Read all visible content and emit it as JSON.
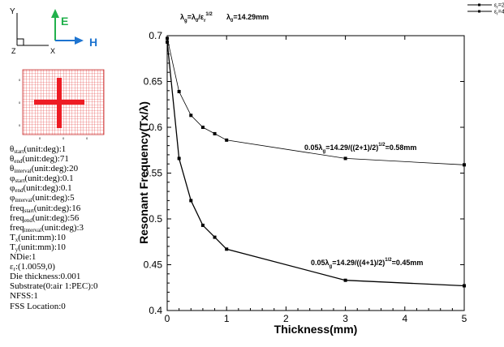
{
  "icon": {
    "y_label": "Y",
    "z_label": "Z",
    "x_label": "X",
    "e_label": "E",
    "h_label": "H",
    "e_color": "#22b14c",
    "h_color": "#1e74d0"
  },
  "thumbnail": {
    "grid_color": "#e53a3a",
    "cross_color": "#ee1c24",
    "y_ticks": [
      "0",
      "0",
      "0"
    ],
    "x_ticks": [
      "0",
      "0",
      "0"
    ]
  },
  "params": [
    {
      "pre": "θ",
      "sub": "start",
      "post": "(unit:deg):1"
    },
    {
      "pre": "θ",
      "sub": "end",
      "post": "(unit:deg):71"
    },
    {
      "pre": "θ",
      "sub": "interval",
      "post": "(unit:deg):20"
    },
    {
      "pre": "φ",
      "sub": "start",
      "post": "(unit:deg):0.1"
    },
    {
      "pre": "φ",
      "sub": "end",
      "post": "(unit:deg):0.1"
    },
    {
      "pre": "φ",
      "sub": "interval",
      "post": "(unit:deg):5"
    },
    {
      "pre": "freq",
      "sub": "start",
      "post": "(unit:deg):16"
    },
    {
      "pre": "freq",
      "sub": "end",
      "post": "(unit:deg):56"
    },
    {
      "pre": "freq",
      "sub": "interval",
      "post": "(unit:deg):3"
    },
    {
      "pre": "T",
      "sub": "x",
      "post": "(unit:mm):10"
    },
    {
      "pre": "T",
      "sub": "y",
      "post": "(unit:mm):10"
    },
    {
      "pre": "NDie:1",
      "sub": "",
      "post": ""
    },
    {
      "pre": "ε",
      "sub": "r",
      "post": ":(1.0059,0)"
    },
    {
      "pre": "Die thickness:0.001",
      "sub": "",
      "post": ""
    },
    {
      "pre": "Substrate(0:air 1:PEC):0",
      "sub": "",
      "post": ""
    },
    {
      "pre": "NFSS:1",
      "sub": "",
      "post": ""
    },
    {
      "pre": "FSS Location:0",
      "sub": "",
      "post": ""
    }
  ],
  "chart_data": {
    "type": "line",
    "title_parts": {
      "lambda_g": "λg=λ0/εr1/2",
      "lambda_0": "λ0=14.29mm"
    },
    "xlabel": "Thickness(mm)",
    "ylabel": "Resonant Frequency(Tx/λ)",
    "xlim": [
      0,
      5
    ],
    "ylim": [
      0.4,
      0.7
    ],
    "x_ticks": [
      "0",
      "1",
      "2",
      "3",
      "4",
      "5"
    ],
    "y_ticks": [
      "0.4",
      "0.45",
      "0.5",
      "0.55",
      "0.6",
      "0.65",
      "0.7"
    ],
    "grid": false,
    "legend_position": "top-right",
    "legend_entries": [
      "εr=2",
      "εr=4"
    ],
    "series": [
      {
        "name": "εr=2",
        "x": [
          0.001,
          0.2,
          0.4,
          0.6,
          0.8,
          1.0,
          3.0,
          5.0
        ],
        "y": [
          0.697,
          0.639,
          0.613,
          0.6,
          0.593,
          0.586,
          0.566,
          0.559
        ]
      },
      {
        "name": "εr=4",
        "x": [
          0.001,
          0.2,
          0.4,
          0.6,
          0.8,
          1.0,
          3.0,
          5.0
        ],
        "y": [
          0.693,
          0.566,
          0.52,
          0.493,
          0.48,
          0.467,
          0.433,
          0.427
        ]
      }
    ],
    "annotations": [
      {
        "pre": "0.05",
        "lam": "λ",
        "sub": "g",
        "post": "=14.29/((2+1)/2)",
        "sup": "1/2",
        "end": "=0.58mm"
      },
      {
        "pre": "0.05",
        "lam": "λ",
        "sub": "g",
        "post": "=14.29/((4+1)/2)",
        "sup": "1/2",
        "end": "=0.45mm"
      }
    ]
  }
}
